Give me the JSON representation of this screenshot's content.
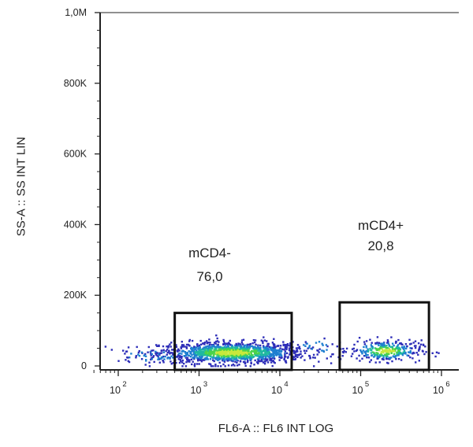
{
  "chart_data": {
    "type": "scatter",
    "subtype": "flow-cytometry-density-plot",
    "title": "",
    "xlabel": "FL6-A :: FL6 INT LOG",
    "ylabel": "SS-A :: SS INT LIN",
    "x_scale": "log",
    "xlim": [
      50,
      1000000
    ],
    "y_scale": "linear",
    "ylim": [
      0,
      1000000
    ],
    "x_ticks": [
      {
        "base": "10",
        "exp": "2",
        "value": 100
      },
      {
        "base": "10",
        "exp": "3",
        "value": 1000
      },
      {
        "base": "10",
        "exp": "4",
        "value": 10000
      },
      {
        "base": "10",
        "exp": "5",
        "value": 100000
      },
      {
        "base": "10",
        "exp": "6",
        "value": 1000000
      }
    ],
    "y_ticks": [
      {
        "label": "0",
        "value": 0
      },
      {
        "label": "200K",
        "value": 200000
      },
      {
        "label": "400K",
        "value": 400000
      },
      {
        "label": "600K",
        "value": 600000
      },
      {
        "label": "800K",
        "value": 800000
      },
      {
        "label": "1,0M",
        "value": 1000000
      }
    ],
    "gates": [
      {
        "name": "mCD4-",
        "percent": "76,0",
        "x_range": [
          500,
          14000
        ],
        "y_range": [
          0,
          150000
        ]
      },
      {
        "name": "mCD4+",
        "percent": "20,8",
        "x_range": [
          55000,
          700000
        ],
        "y_range": [
          0,
          180000
        ]
      }
    ],
    "populations": [
      {
        "x_center": 2500,
        "x_spread_decades": 0.45,
        "y_center": 40000,
        "y_spread": 15000,
        "count": 1300
      },
      {
        "x_center": 200000,
        "x_spread_decades": 0.22,
        "y_center": 45000,
        "y_spread": 15000,
        "count": 320
      },
      {
        "x_center": 250,
        "x_spread_decades": 0.2,
        "y_center": 30000,
        "y_spread": 10000,
        "count": 50
      },
      {
        "x_center": 30000,
        "x_spread_decades": 0.15,
        "y_center": 55000,
        "y_spread": 12000,
        "count": 25
      }
    ],
    "density_colors": [
      "#2d2db8",
      "#1f7fd0",
      "#1fb8a0",
      "#4ad24a",
      "#c8e83c"
    ]
  }
}
